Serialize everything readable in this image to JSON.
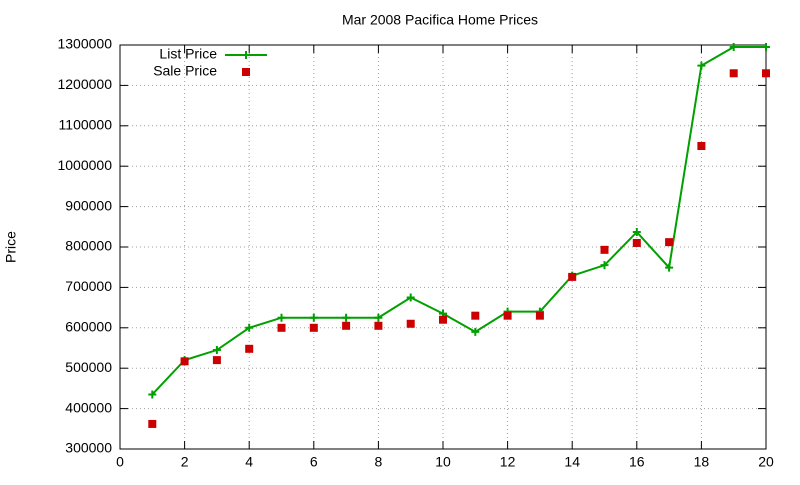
{
  "chart_data": {
    "type": "line",
    "title": "Mar 2008 Pacifica Home Prices",
    "y_label": "Price",
    "x": [
      1,
      2,
      3,
      4,
      5,
      6,
      7,
      8,
      9,
      10,
      11,
      12,
      13,
      14,
      15,
      16,
      17,
      18,
      19,
      20
    ],
    "series": [
      {
        "name": "List Price",
        "color": "#00a000",
        "style": "linespoints",
        "values": [
          435000,
          520000,
          545000,
          600000,
          625000,
          625000,
          625000,
          625000,
          675000,
          635000,
          590000,
          640000,
          640000,
          729000,
          755000,
          837000,
          749000,
          1249000,
          1295000,
          1295000
        ]
      },
      {
        "name": "Sale Price",
        "color": "#cc0000",
        "style": "points",
        "values": [
          362000,
          517000,
          520000,
          548000,
          600000,
          600000,
          605000,
          605000,
          610000,
          620000,
          630000,
          630000,
          630000,
          726000,
          793000,
          810000,
          812000,
          1050000,
          1230000,
          1230000
        ]
      }
    ],
    "xlim": [
      0,
      20
    ],
    "xticks": [
      0,
      2,
      4,
      6,
      8,
      10,
      12,
      14,
      16,
      18,
      20
    ],
    "ylim": [
      300000,
      1300000
    ],
    "yticks": [
      300000,
      400000,
      500000,
      600000,
      700000,
      800000,
      900000,
      1000000,
      1100000,
      1200000,
      1300000
    ],
    "grid": true,
    "legend": "top-left"
  }
}
